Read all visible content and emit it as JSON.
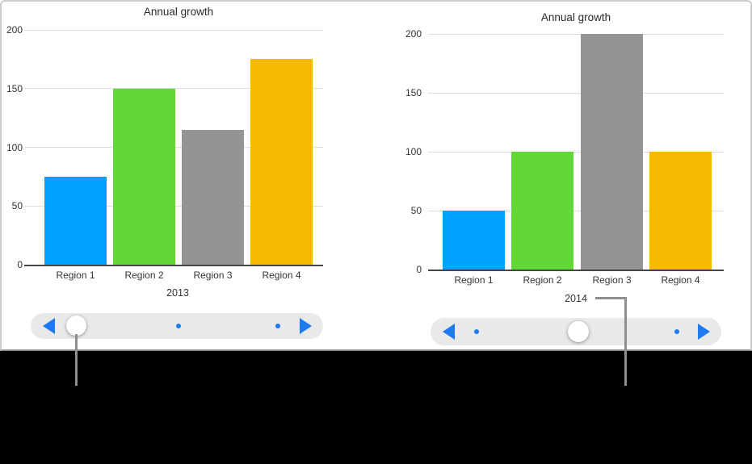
{
  "figure": {
    "panel_bg": "#ffffff",
    "caption_bg": "#000000",
    "border_color": "#cdcdcd",
    "callout_line_color": "#8e8e8e"
  },
  "chart_data": [
    {
      "type": "bar",
      "title": "Annual growth",
      "categories": [
        "Region 1",
        "Region 2",
        "Region 3",
        "Region 4"
      ],
      "values": [
        75,
        150,
        115,
        175
      ],
      "bar_colors": [
        "#00a2ff",
        "#61d836",
        "#949494",
        "#f8ba00"
      ],
      "xlabel": "2013",
      "ylabel": "",
      "y_ticks": [
        0,
        50,
        100,
        150,
        200
      ],
      "ylim": [
        0,
        200
      ],
      "grid": true,
      "legend": false
    },
    {
      "type": "bar",
      "title": "Annual growth",
      "categories": [
        "Region 1",
        "Region 2",
        "Region 3",
        "Region 4"
      ],
      "values": [
        50,
        100,
        200,
        100
      ],
      "bar_colors": [
        "#00a2ff",
        "#61d836",
        "#949494",
        "#f8ba00"
      ],
      "xlabel": "2014",
      "ylabel": "",
      "y_ticks": [
        0,
        50,
        100,
        150,
        200
      ],
      "ylim": [
        0,
        200
      ],
      "grid": true,
      "legend": false
    }
  ],
  "controls": {
    "accent_color": "#1d7af2",
    "track_color": "#e9e9ea",
    "knob_color": "#ffffff",
    "scrubbers": [
      {
        "name": "timeline-scrubber-2013",
        "prev_icon": "chevron-left-icon",
        "next_icon": "chevron-right-icon",
        "positions": 3,
        "active_index": 0
      },
      {
        "name": "timeline-scrubber-2014",
        "prev_icon": "chevron-left-icon",
        "next_icon": "chevron-right-icon",
        "positions": 3,
        "active_index": 1
      }
    ]
  }
}
